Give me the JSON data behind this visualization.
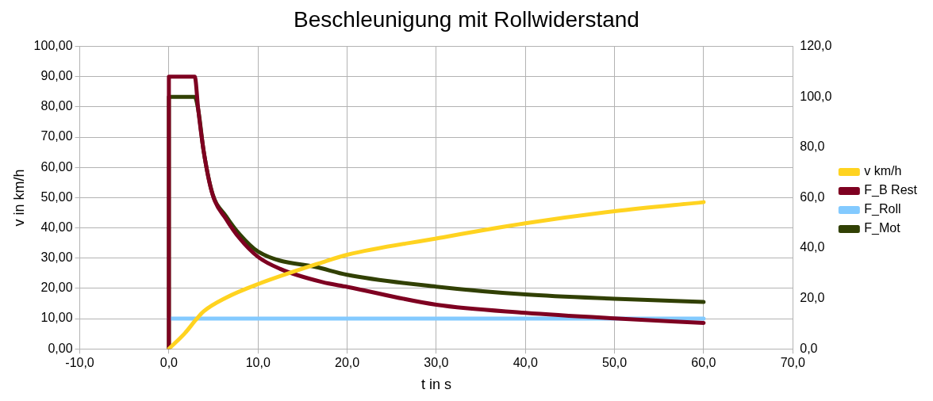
{
  "chart_data": {
    "type": "line",
    "title": "Beschleunigung mit Rollwiderstand",
    "xlabel": "t in s",
    "ylabel": "v in km/h",
    "xlim": [
      -10,
      70
    ],
    "xticks": [
      {
        "value": -10,
        "label": "-10,0"
      },
      {
        "value": 0,
        "label": "0,0"
      },
      {
        "value": 10,
        "label": "10,0"
      },
      {
        "value": 20,
        "label": "20,0"
      },
      {
        "value": 30,
        "label": "30,0"
      },
      {
        "value": 40,
        "label": "40,0"
      },
      {
        "value": 50,
        "label": "50,0"
      },
      {
        "value": 60,
        "label": "60,0"
      },
      {
        "value": 70,
        "label": "70,0"
      }
    ],
    "ylim": [
      0,
      100
    ],
    "yticks": [
      {
        "value": 0,
        "label": "0,00"
      },
      {
        "value": 10,
        "label": "10,00"
      },
      {
        "value": 20,
        "label": "20,00"
      },
      {
        "value": 30,
        "label": "30,00"
      },
      {
        "value": 40,
        "label": "40,00"
      },
      {
        "value": 50,
        "label": "50,00"
      },
      {
        "value": 60,
        "label": "60,00"
      },
      {
        "value": 70,
        "label": "70,00"
      },
      {
        "value": 80,
        "label": "80,00"
      },
      {
        "value": 90,
        "label": "90,00"
      },
      {
        "value": 100,
        "label": "100,00"
      }
    ],
    "y2lim": [
      0,
      120
    ],
    "y2ticks": [
      {
        "value": 0,
        "label": "0,0"
      },
      {
        "value": 20,
        "label": "20,0"
      },
      {
        "value": 40,
        "label": "40,0"
      },
      {
        "value": 60,
        "label": "60,0"
      },
      {
        "value": 80,
        "label": "80,0"
      },
      {
        "value": 100,
        "label": "100,0"
      },
      {
        "value": 120,
        "label": "120,0"
      }
    ],
    "grid": true,
    "legend": "right",
    "marker": "none",
    "line_style": "solid",
    "series": [
      {
        "name": "v km/h",
        "color": "#ffd320",
        "x": [
          0,
          1.8,
          3,
          3.9,
          6.4,
          10,
          17.2,
          20,
          30,
          40,
          50,
          60
        ],
        "values": [
          0,
          5.2,
          9.5,
          12.4,
          16.9,
          21.4,
          28.6,
          31.1,
          36.5,
          41.5,
          45.5,
          48.5
        ]
      },
      {
        "name": "F_B Rest",
        "color": "#7e0021",
        "axis": "y2",
        "x": [
          0,
          0,
          2.9,
          3.3,
          3.9,
          4.9,
          6.4,
          7.9,
          10,
          12.5,
          17.2,
          20,
          30,
          40,
          50,
          60
        ],
        "values": [
          0,
          108,
          108,
          94.7,
          78.5,
          61.2,
          51.6,
          44,
          36.5,
          31.7,
          26.5,
          24.6,
          17.5,
          14.3,
          12.1,
          10.3
        ]
      },
      {
        "name": "F_Roll",
        "color": "#83caff",
        "axis": "y2",
        "x": [
          0,
          60
        ],
        "values": [
          12,
          12
        ]
      },
      {
        "name": "F_Mot",
        "color": "#314004",
        "axis": "y2",
        "x": [
          0,
          0,
          2.9,
          3.3,
          3.9,
          4.9,
          6.4,
          7.9,
          10,
          17.2,
          20,
          30,
          40,
          50,
          60
        ],
        "values": [
          0,
          100,
          100,
          94.7,
          78.5,
          61.5,
          52.7,
          45.6,
          38.6,
          31.9,
          29.4,
          24.7,
          21.6,
          19.9,
          18.6
        ]
      }
    ]
  }
}
